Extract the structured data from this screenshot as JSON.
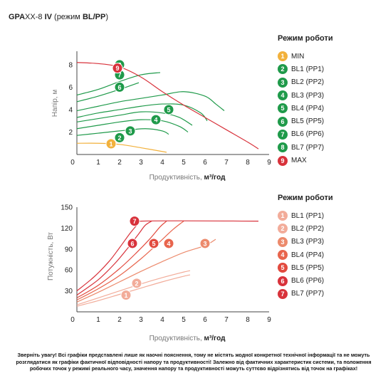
{
  "header": {
    "brand_bold": "GPA",
    "brand_rest": "XX-8",
    "model_bold": "IV",
    "mode_prefix": "(режим ",
    "mode_bold": "BL/PP",
    "mode_suffix": ")"
  },
  "colors": {
    "min": "#f2b13c",
    "green": "#1f9a4a",
    "max": "#d8323b",
    "pink_light": "#f2ac9a",
    "salmon": "#ec8a6c",
    "orange": "#e8654d",
    "red_light": "#e24a3e",
    "red": "#d8323b"
  },
  "chart_data": [
    {
      "type": "line",
      "xlabel": "Продуктивність,",
      "xunit": "м³/год",
      "ylabel": "Напір, м",
      "xlim": [
        0,
        9
      ],
      "ylim": [
        0,
        9.2
      ],
      "xticks": [
        0,
        1,
        2,
        3,
        4,
        5,
        6,
        7,
        8,
        9
      ],
      "yticks": [
        2,
        4,
        6,
        8
      ],
      "legend_title": "Режим роботи",
      "series": [
        {
          "badge": "1",
          "name": "MIN",
          "color": "#f2b13c",
          "points": [
            [
              0,
              1.0
            ],
            [
              1.0,
              1.0
            ],
            [
              2.0,
              0.9
            ],
            [
              3.0,
              0.6
            ],
            [
              4.2,
              0.2
            ]
          ],
          "marker": [
            1.6,
            0.95
          ]
        },
        {
          "badge": "2",
          "name": "BL1 (PP1)",
          "color": "#1f9a4a",
          "points": [
            [
              0,
              1.7
            ],
            [
              1.0,
              1.9
            ],
            [
              2.0,
              2.1
            ],
            [
              3.2,
              2.3
            ],
            [
              4.0,
              2.1
            ],
            [
              4.3,
              1.8
            ]
          ],
          "marker": [
            2.0,
            1.5
          ]
        },
        {
          "badge": "3",
          "name": "BL2 (PP2)",
          "color": "#1f9a4a",
          "points": [
            [
              0,
              2.3
            ],
            [
              1.0,
              2.6
            ],
            [
              2.0,
              2.9
            ],
            [
              3.0,
              3.1
            ],
            [
              4.0,
              3.0
            ],
            [
              4.8,
              2.5
            ],
            [
              5.2,
              2.0
            ]
          ],
          "marker": [
            2.5,
            2.1
          ]
        },
        {
          "badge": "4",
          "name": "BL3 (PP3)",
          "color": "#1f9a4a",
          "points": [
            [
              0,
              2.9
            ],
            [
              1.0,
              3.2
            ],
            [
              2.0,
              3.5
            ],
            [
              3.0,
              3.8
            ],
            [
              4.0,
              3.7
            ],
            [
              4.8,
              3.3
            ],
            [
              5.4,
              2.6
            ]
          ],
          "marker": [
            3.7,
            3.1
          ]
        },
        {
          "badge": "5",
          "name": "BL4 (PP4)",
          "color": "#1f9a4a",
          "points": [
            [
              0,
              3.3
            ],
            [
              1.0,
              3.7
            ],
            [
              2.0,
              4.0
            ],
            [
              3.0,
              4.3
            ],
            [
              4.0,
              4.5
            ],
            [
              5.0,
              4.4
            ],
            [
              5.8,
              3.7
            ],
            [
              6.1,
              3.0
            ]
          ],
          "marker": [
            4.3,
            4.0
          ]
        },
        {
          "badge": "6",
          "name": "BL5 (PP5)",
          "color": "#1f9a4a",
          "points": [
            [
              0,
              3.9
            ],
            [
              1.0,
              4.3
            ],
            [
              2.0,
              4.7
            ],
            [
              3.0,
              5.0
            ],
            [
              4.0,
              5.3
            ],
            [
              5.0,
              5.6
            ],
            [
              6.0,
              5.2
            ],
            [
              6.5,
              4.5
            ],
            [
              6.9,
              3.9
            ]
          ],
          "marker": [
            2.0,
            6.0
          ]
        },
        {
          "badge": "7",
          "name": "BL6 (PP6)",
          "color": "#1f9a4a",
          "points": [
            [
              0,
              4.7
            ],
            [
              1.0,
              5.2
            ],
            [
              2.0,
              5.8
            ],
            [
              2.9,
              6.4
            ]
          ],
          "marker": [
            2.0,
            7.1
          ]
        },
        {
          "badge": "8",
          "name": "BL7 (PP7)",
          "color": "#1f9a4a",
          "points": [
            [
              0,
              5.3
            ],
            [
              1.0,
              5.8
            ],
            [
              2.0,
              6.5
            ],
            [
              3.0,
              7.1
            ],
            [
              3.9,
              7.3
            ]
          ],
          "marker": [
            2.0,
            8.0
          ]
        },
        {
          "badge": "9",
          "name": "MAX",
          "color": "#d8323b",
          "points": [
            [
              0,
              8.2
            ],
            [
              1.0,
              8.1
            ],
            [
              2.0,
              7.8
            ],
            [
              3.0,
              6.9
            ],
            [
              4.0,
              5.6
            ],
            [
              5.0,
              4.4
            ],
            [
              6.0,
              3.3
            ],
            [
              7.0,
              2.2
            ],
            [
              8.0,
              1.1
            ],
            [
              8.5,
              0.5
            ]
          ],
          "marker": [
            1.9,
            7.7
          ]
        }
      ]
    },
    {
      "type": "line",
      "xlabel": "Продуктивність,",
      "xunit": "м³/год",
      "ylabel": "Потужність, Вт",
      "xlim": [
        0,
        9
      ],
      "ylim": [
        0,
        150
      ],
      "xticks": [
        0,
        1,
        2,
        3,
        4,
        5,
        6,
        7,
        8,
        9
      ],
      "yticks": [
        30,
        60,
        90,
        120,
        150
      ],
      "legend_title": "Режим роботи",
      "series": [
        {
          "badge": "1",
          "name": "BL1 (PP1)",
          "color": "#f2ac9a",
          "points": [
            [
              0,
              8
            ],
            [
              1,
              16
            ],
            [
              2,
              25
            ],
            [
              3,
              34
            ],
            [
              4,
              43
            ],
            [
              5,
              51
            ],
            [
              5.3,
              53
            ]
          ],
          "marker": [
            2.3,
            24
          ]
        },
        {
          "badge": "2",
          "name": "BL2 (PP2)",
          "color": "#f2ac9a",
          "points": [
            [
              0,
              10
            ],
            [
              1,
              20
            ],
            [
              2,
              30
            ],
            [
              3,
              40
            ],
            [
              4,
              49
            ],
            [
              5,
              57
            ],
            [
              5.3,
              59
            ]
          ],
          "marker": [
            2.8,
            41
          ]
        },
        {
          "badge": "3",
          "name": "BL3 (PP3)",
          "color": "#ec8a6c",
          "points": [
            [
              0,
              14
            ],
            [
              1,
              28
            ],
            [
              2,
              43
            ],
            [
              3,
              58
            ],
            [
              4,
              72
            ],
            [
              5,
              85
            ],
            [
              6,
              95
            ],
            [
              6.5,
              104
            ]
          ],
          "marker": [
            6.0,
            98
          ]
        },
        {
          "badge": "4",
          "name": "BL4 (PP4)",
          "color": "#e8654d",
          "points": [
            [
              0,
              17
            ],
            [
              1,
              33
            ],
            [
              2,
              52
            ],
            [
              3,
              76
            ],
            [
              3.8,
              98
            ],
            [
              4.5,
              118
            ],
            [
              5.0,
              130
            ]
          ],
          "marker": [
            4.3,
            98
          ]
        },
        {
          "badge": "5",
          "name": "BL5 (PP5)",
          "color": "#e24a3e",
          "points": [
            [
              0,
              20
            ],
            [
              1,
              38
            ],
            [
              2,
              62
            ],
            [
              2.8,
              85
            ],
            [
              3.4,
              104
            ],
            [
              3.9,
              122
            ],
            [
              4.2,
              130
            ]
          ],
          "marker": [
            3.6,
            98
          ]
        },
        {
          "badge": "6",
          "name": "BL6 (PP6)",
          "color": "#d8323b",
          "points": [
            [
              0,
              24
            ],
            [
              1,
              46
            ],
            [
              1.8,
              70
            ],
            [
              2.4,
              92
            ],
            [
              2.9,
              112
            ],
            [
              3.2,
              124
            ],
            [
              3.5,
              130
            ]
          ],
          "marker": [
            2.6,
            98
          ]
        },
        {
          "badge": "7",
          "name": "BL7 (PP7)",
          "color": "#d8323b",
          "points": [
            [
              0,
              30
            ],
            [
              0.8,
              50
            ],
            [
              1.5,
              72
            ],
            [
              2.0,
              92
            ],
            [
              2.5,
              113
            ],
            [
              2.8,
              124
            ],
            [
              3.0,
              130
            ],
            [
              8.5,
              130
            ]
          ],
          "marker": [
            2.7,
            130
          ]
        }
      ]
    }
  ],
  "disclaimer": "Зверніть увагу! Всі графіки представлені лише як наочні пояснення, тому не містять жодної конкретної технічної інформації та не можуть розглядатися як графіки фактичної відповідності напору та продуктивності! Залежно від фактичних характеристик системи, та положення робочих точок у режимі реального часу, значення напору та продуктивності можуть суттєво відрізнятись від точок на графіках!"
}
